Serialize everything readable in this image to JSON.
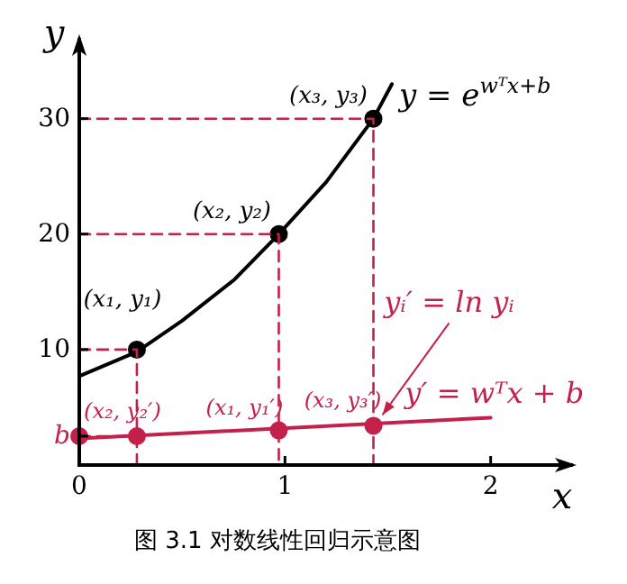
{
  "chart_data": {
    "type": "line",
    "xlabel": "x",
    "ylabel": "y",
    "xlim": [
      0,
      2.4
    ],
    "ylim": [
      0,
      37
    ],
    "xticks": [
      0,
      1,
      2
    ],
    "yticks": [
      {
        "value": 2.5,
        "label": "b"
      },
      10,
      20,
      30
    ],
    "grid": false,
    "marker": "none",
    "series": [
      {
        "type": "line",
        "color": "#000000",
        "x": [
          0,
          0.28,
          0.5,
          0.75,
          0.97,
          1.2,
          1.43,
          1.52
        ],
        "values": [
          7.7,
          9.8,
          12.5,
          16,
          20,
          24.5,
          30,
          33
        ]
      },
      {
        "type": "scatter",
        "color": "#000000",
        "marker": "circle",
        "x": [
          0.28,
          0.97,
          1.43
        ],
        "values": [
          10,
          20,
          30
        ]
      },
      {
        "type": "line",
        "color": "#c4204c",
        "x": [
          0,
          2
        ],
        "values": [
          2.3,
          4.1
        ]
      },
      {
        "type": "scatter",
        "color": "#c4204c",
        "marker": "circle",
        "x": [
          0,
          0.28,
          0.97,
          1.43
        ],
        "values": [
          2.5,
          2.5,
          3.0,
          3.4
        ]
      },
      {
        "type": "line",
        "color": "#c4204c",
        "line_style": "dashed",
        "x": [
          0,
          0.28,
          0.28
        ],
        "values": [
          10,
          10,
          0
        ]
      },
      {
        "type": "line",
        "color": "#c4204c",
        "line_style": "dashed",
        "x": [
          0,
          0.97,
          0.97
        ],
        "values": [
          20,
          20,
          0
        ]
      },
      {
        "type": "line",
        "color": "#c4204c",
        "line_style": "dashed",
        "x": [
          0,
          1.43,
          1.43
        ],
        "values": [
          30,
          30,
          0
        ]
      },
      {
        "type": "line",
        "color": "#c4204c",
        "line_style": "dashed",
        "x": [
          0,
          0.28
        ],
        "values": [
          2.5,
          2.5
        ]
      }
    ],
    "annotations": [
      {
        "text": "(x₁, y₁)",
        "x": 0.28,
        "y": 10
      },
      {
        "text": "(x₂, y₂)",
        "x": 0.97,
        "y": 20
      },
      {
        "text": "(x₃, y₃)",
        "x": 1.43,
        "y": 30
      },
      {
        "text": "y = e$^{wᵀx+b}$",
        "x": 1.52,
        "y": 33
      },
      {
        "text": "(x₂, y₂′)",
        "x": 0,
        "y": 2.5
      },
      {
        "text": "(x₁, y₁′)",
        "x": 0.97,
        "y": 3.0
      },
      {
        "text": "(x₃, y₃′)",
        "x": 1.43,
        "y": 3.4
      },
      {
        "text": "y′ = wᵀx + b",
        "x": 2,
        "y": 4.1
      },
      {
        "text": "yᵢ′ = ln yᵢ",
        "x": 1.43,
        "y": 3.4
      },
      "图 3.1  对数线性回归示意图"
    ]
  }
}
